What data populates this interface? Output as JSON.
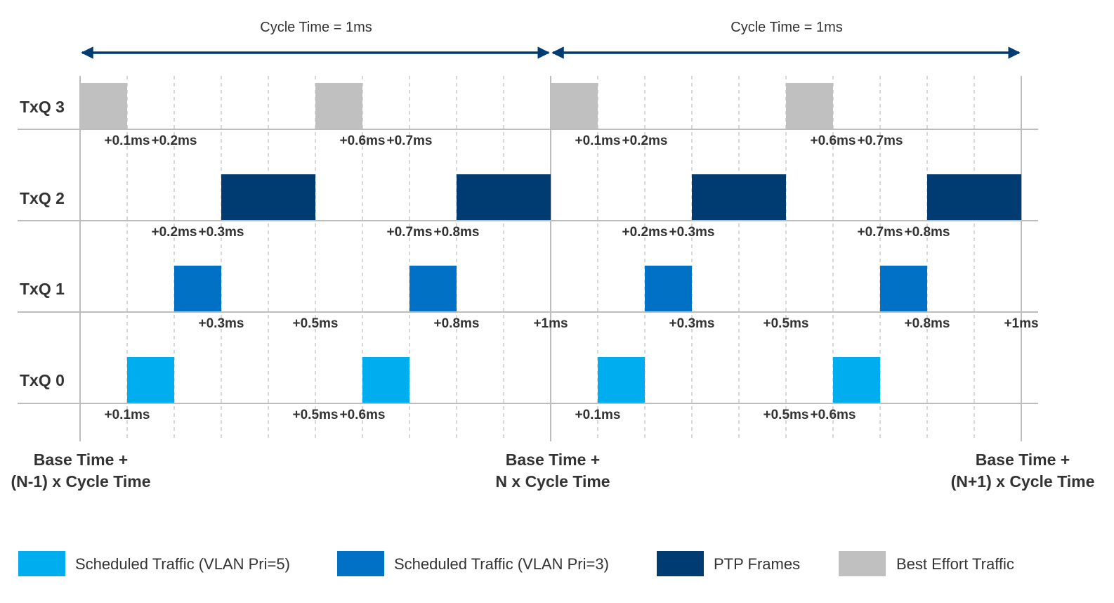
{
  "cycle_labels": [
    "Cycle Time = 1ms",
    "Cycle Time = 1ms"
  ],
  "queues": [
    "TxQ 3",
    "TxQ 2",
    "TxQ 1",
    "TxQ 0"
  ],
  "base_labels": [
    {
      "line1": "Base Time +",
      "line2": "(N-1) x Cycle Time"
    },
    {
      "line1": "Base Time +",
      "line2": "N x Cycle Time"
    },
    {
      "line1": "Base Time +",
      "line2": "(N+1) x Cycle Time"
    }
  ],
  "rows": [
    {
      "queue": "TxQ 3",
      "traffic": "best_effort",
      "blocks": [
        [
          0,
          0.1
        ],
        [
          0.5,
          0.6
        ],
        [
          1.0,
          1.1
        ],
        [
          1.5,
          1.6
        ]
      ],
      "ticks": [
        {
          "label": "+0.1ms",
          "t": 0.1
        },
        {
          "label": "+0.2ms",
          "t": 0.2
        },
        {
          "label": "+0.6ms",
          "t": 0.6
        },
        {
          "label": "+0.7ms",
          "t": 0.7
        },
        {
          "label": "+0.1ms",
          "t": 1.1
        },
        {
          "label": "+0.2ms",
          "t": 1.2
        },
        {
          "label": "+0.6ms",
          "t": 1.6
        },
        {
          "label": "+0.7ms",
          "t": 1.7
        }
      ]
    },
    {
      "queue": "TxQ 2",
      "traffic": "ptp",
      "blocks": [
        [
          0.3,
          0.5
        ],
        [
          0.8,
          1.0
        ],
        [
          1.3,
          1.5
        ],
        [
          1.8,
          2.0
        ]
      ],
      "ticks": [
        {
          "label": "+0.2ms",
          "t": 0.2
        },
        {
          "label": "+0.3ms",
          "t": 0.3
        },
        {
          "label": "+0.7ms",
          "t": 0.7
        },
        {
          "label": "+0.8ms",
          "t": 0.8
        },
        {
          "label": "+0.2ms",
          "t": 1.2
        },
        {
          "label": "+0.3ms",
          "t": 1.3
        },
        {
          "label": "+0.7ms",
          "t": 1.7
        },
        {
          "label": "+0.8ms",
          "t": 1.8
        }
      ]
    },
    {
      "queue": "TxQ 1",
      "traffic": "vlan3",
      "blocks": [
        [
          0.2,
          0.3
        ],
        [
          0.7,
          0.8
        ],
        [
          1.2,
          1.3
        ],
        [
          1.7,
          1.8
        ]
      ],
      "ticks": [
        {
          "label": "+0.3ms",
          "t": 0.3
        },
        {
          "label": "+0.5ms",
          "t": 0.5
        },
        {
          "label": "+0.8ms",
          "t": 0.8
        },
        {
          "label": "+1ms",
          "t": 1.0
        },
        {
          "label": "+0.3ms",
          "t": 1.3
        },
        {
          "label": "+0.5ms",
          "t": 1.5
        },
        {
          "label": "+0.8ms",
          "t": 1.8
        },
        {
          "label": "+1ms",
          "t": 2.0
        }
      ]
    },
    {
      "queue": "TxQ 0",
      "traffic": "vlan5",
      "blocks": [
        [
          0.1,
          0.2
        ],
        [
          0.6,
          0.7
        ],
        [
          1.1,
          1.2
        ],
        [
          1.6,
          1.7
        ]
      ],
      "ticks": [
        {
          "label": "+0.1ms",
          "t": 0.1
        },
        {
          "label": "+0.5ms",
          "t": 0.5
        },
        {
          "label": "+0.6ms",
          "t": 0.6
        },
        {
          "label": "+0.1ms",
          "t": 1.1
        },
        {
          "label": "+0.5ms",
          "t": 1.5
        },
        {
          "label": "+0.6ms",
          "t": 1.6
        }
      ]
    }
  ],
  "legend": [
    {
      "key": "vlan5",
      "label": "Scheduled Traffic (VLAN Pri=5)",
      "color": "#00AEEF"
    },
    {
      "key": "vlan3",
      "label": "Scheduled Traffic (VLAN Pri=3)",
      "color": "#0071C5"
    },
    {
      "key": "ptp",
      "label": "PTP Frames",
      "color": "#003C71"
    },
    {
      "key": "best_effort",
      "label": "Best Effort Traffic",
      "color": "#C0C0C0"
    }
  ],
  "colors": {
    "arrow": "#003C71",
    "axis": "#BDBDBD",
    "grid": "#BDBDBD",
    "text": "#333333"
  }
}
